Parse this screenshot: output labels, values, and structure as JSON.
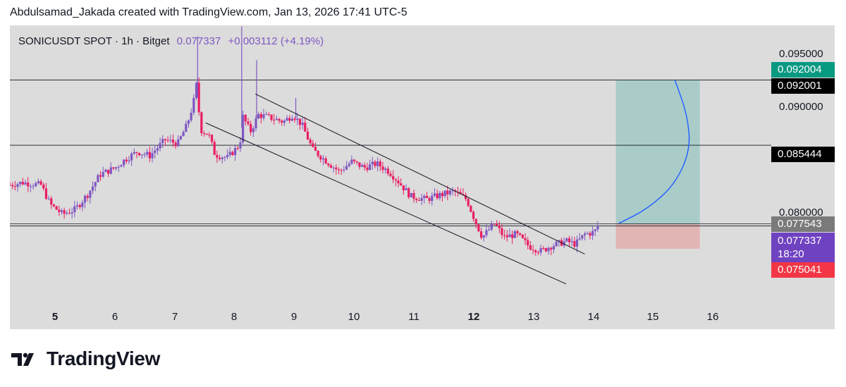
{
  "header": {
    "attribution": "Abdulsamad_Jakada created with TradingView.com, Jan 13, 2026 17:41 UTC-5"
  },
  "legend": {
    "symbol": "SONICUSDT SPOT · 1h · Bitget",
    "last": "0.077337",
    "change": "+0.003112 (+4.19%)"
  },
  "price_labels": {
    "target": "0.092004",
    "level_high": "0.092001",
    "level_mid": "0.085444",
    "entry": "0.077543",
    "current": "0.077337",
    "countdown": "18:20",
    "stop": "0.075041"
  },
  "footer": {
    "brand": "TradingView"
  },
  "colors": {
    "up": "#7e57c2",
    "down": "#e91e63",
    "target_zone": "#26a69a",
    "stop_zone": "#ef5350",
    "projection": "#2962ff",
    "background": "#dcdcdc"
  },
  "chart_data": {
    "type": "candlestick",
    "symbol": "SONICUSDT",
    "exchange": "Bitget",
    "timeframe": "1h",
    "x_ticks": [
      "5",
      "6",
      "7",
      "8",
      "9",
      "10",
      "11",
      "12",
      "13",
      "14",
      "15",
      "16"
    ],
    "x_ticks_bold": [
      "5",
      "12"
    ],
    "x_range_days": [
      4.25,
      16.5
    ],
    "y_ticks": [
      "0.095000",
      "0.090000",
      "0.080000"
    ],
    "y_range": [
      0.0695,
      0.0975
    ],
    "close_path": [
      [
        4.25,
        0.08145
      ],
      [
        4.45,
        0.0817
      ],
      [
        4.75,
        0.08145
      ],
      [
        4.9,
        0.0795
      ],
      [
        5.1,
        0.0785
      ],
      [
        5.3,
        0.079
      ],
      [
        5.5,
        0.0805
      ],
      [
        5.7,
        0.0825
      ],
      [
        5.95,
        0.0832
      ],
      [
        6.1,
        0.084
      ],
      [
        6.3,
        0.0848
      ],
      [
        6.5,
        0.0844
      ],
      [
        6.75,
        0.086
      ],
      [
        6.95,
        0.0856
      ],
      [
        7.1,
        0.0875
      ],
      [
        7.2,
        0.0896
      ],
      [
        7.25,
        0.0915
      ],
      [
        7.32,
        0.087
      ],
      [
        7.45,
        0.0865
      ],
      [
        7.55,
        0.0845
      ],
      [
        7.75,
        0.0842
      ],
      [
        7.95,
        0.0855
      ],
      [
        8.0,
        0.0883
      ],
      [
        8.12,
        0.0868
      ],
      [
        8.25,
        0.0885
      ],
      [
        8.45,
        0.0882
      ],
      [
        8.65,
        0.0878
      ],
      [
        8.8,
        0.0885
      ],
      [
        8.95,
        0.0875
      ],
      [
        9.12,
        0.085
      ],
      [
        9.35,
        0.0838
      ],
      [
        9.55,
        0.0828
      ],
      [
        9.75,
        0.0838
      ],
      [
        9.95,
        0.0832
      ],
      [
        10.15,
        0.0836
      ],
      [
        10.35,
        0.0828
      ],
      [
        10.5,
        0.0818
      ],
      [
        10.7,
        0.0803
      ],
      [
        10.95,
        0.08
      ],
      [
        11.2,
        0.0805
      ],
      [
        11.4,
        0.0808
      ],
      [
        11.6,
        0.08
      ],
      [
        11.75,
        0.0776
      ],
      [
        11.85,
        0.0762
      ],
      [
        12.05,
        0.0776
      ],
      [
        12.2,
        0.0762
      ],
      [
        12.4,
        0.0765
      ],
      [
        12.6,
        0.0753
      ],
      [
        12.8,
        0.0748
      ],
      [
        12.95,
        0.0753
      ],
      [
        13.2,
        0.0758
      ],
      [
        13.35,
        0.0755
      ],
      [
        13.5,
        0.0765
      ],
      [
        13.65,
        0.0767
      ],
      [
        13.72,
        0.07734
      ]
    ],
    "wick_spikes": [
      {
        "day": 7.27,
        "high": 0.0964
      },
      {
        "day": 7.98,
        "high": 0.0974
      },
      {
        "day": 8.22,
        "high": 0.094
      },
      {
        "day": 8.85,
        "high": 0.0902
      }
    ],
    "horizontal_levels": [
      0.092001,
      0.085444,
      0.077543,
      0.077337
    ],
    "trendlines": [
      {
        "from": [
          8.2,
          0.0906
        ],
        "to": [
          13.5,
          0.0745
        ]
      },
      {
        "from": [
          7.4,
          0.0877
        ],
        "to": [
          13.2,
          0.0715
        ]
      }
    ],
    "long_position": {
      "from_day": 14.0,
      "to_day": 15.35,
      "entry": 0.077543,
      "target": 0.092004,
      "stop": 0.075041
    },
    "projection_curve": [
      [
        14.05,
        0.0776
      ],
      [
        14.5,
        0.079
      ],
      [
        14.95,
        0.0815
      ],
      [
        15.2,
        0.085
      ],
      [
        15.15,
        0.0885
      ],
      [
        14.95,
        0.092
      ]
    ]
  }
}
